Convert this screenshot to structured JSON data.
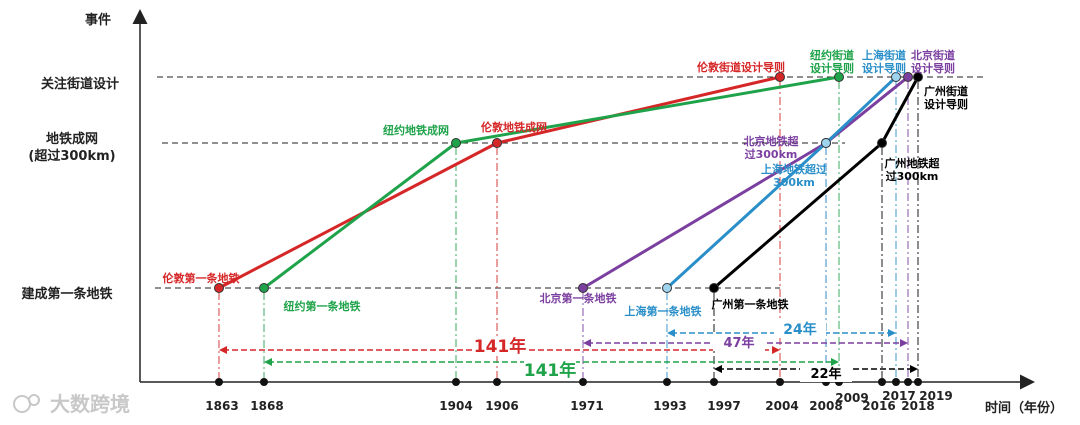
{
  "chart_data": {
    "type": "line",
    "xlabel": "时间（年份）",
    "ylabel": "事件",
    "events": [
      "建成第一条地铁",
      "地铁成网\n(超过300km)",
      "关注街道设计"
    ],
    "x_ticks": [
      1863,
      1868,
      1904,
      1906,
      1971,
      1993,
      1997,
      2004,
      2008,
      2009,
      2016,
      2017,
      2018,
      2019
    ],
    "series": [
      {
        "key": "london",
        "color": "#d62728",
        "points": [
          {
            "year": 1863,
            "level": 0,
            "label": "伦敦第一条地铁"
          },
          {
            "year": 1906,
            "level": 1,
            "label": "伦敦地铁成网"
          },
          {
            "year": 2004,
            "level": 2,
            "label": "伦敦街道设计导则"
          }
        ]
      },
      {
        "key": "newyork",
        "color": "#1fa34a",
        "points": [
          {
            "year": 1868,
            "level": 0,
            "label": "纽约第一条地铁"
          },
          {
            "year": 1904,
            "level": 1,
            "label": "纽约地铁成网"
          },
          {
            "year": 2009,
            "level": 2,
            "label": "纽约街道\n设计导则"
          }
        ]
      },
      {
        "key": "beijing",
        "color": "#7b3fa0",
        "points": [
          {
            "year": 1971,
            "level": 0,
            "label": "北京第一条地铁"
          },
          {
            "year": 2008,
            "level": 1,
            "label": "北京地铁超\n过300km"
          },
          {
            "year": 2018,
            "level": 2,
            "label": "北京街道\n设计导则"
          }
        ]
      },
      {
        "key": "shanghai",
        "color": "#2a8fc9",
        "points": [
          {
            "year": 1993,
            "level": 0,
            "label": "上海第一条地铁"
          },
          {
            "year": 2008,
            "level": 1,
            "label": "上海地铁超过\n300km"
          },
          {
            "year": 2017,
            "level": 2,
            "label": "上海街道\n设计导则"
          }
        ]
      },
      {
        "key": "guangzhou",
        "color": "#000000",
        "points": [
          {
            "year": 1997,
            "level": 0,
            "label": "广州第一条地铁"
          },
          {
            "year": 2016,
            "level": 1,
            "label": "广州地铁超\n过300km"
          },
          {
            "year": 2019,
            "level": 2,
            "label": "广州街道\n设计导则"
          }
        ]
      }
    ],
    "gaps": [
      {
        "from": 1863,
        "to": 2004,
        "label": "141年",
        "color": "#d62728"
      },
      {
        "from": 1868,
        "to": 2009,
        "label": "141年",
        "color": "#1fa34a"
      },
      {
        "from": 1971,
        "to": 2018,
        "label": "47年",
        "color": "#7b3fa0"
      },
      {
        "from": 1993,
        "to": 2017,
        "label": "24年",
        "color": "#2a8fc9"
      },
      {
        "from": 1997,
        "to": 2019,
        "label": "22年",
        "color": "#000000"
      }
    ]
  },
  "watermark": "大数跨境"
}
